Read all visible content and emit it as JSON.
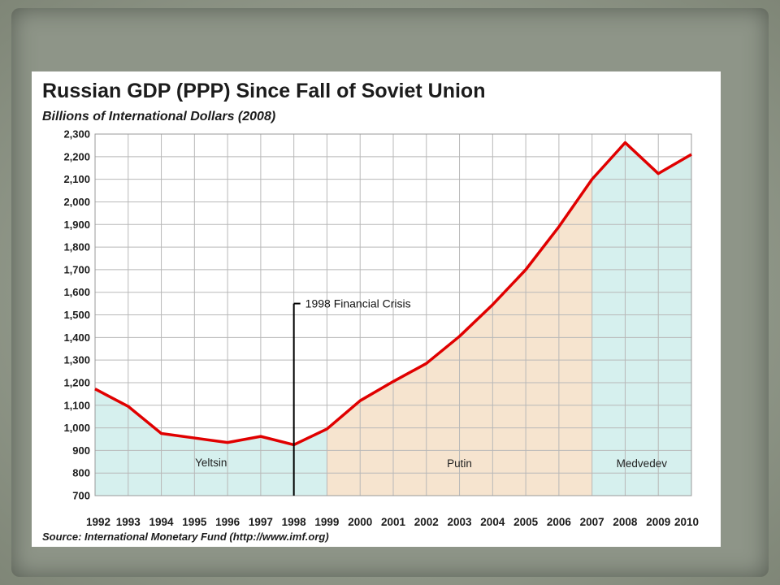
{
  "chart_data": {
    "type": "area",
    "title": "Russian GDP (PPP) Since Fall of Soviet Union",
    "subtitle": "Billions of International Dollars (2008)",
    "source": "Source: International Monetary Fund (http://www.imf.org)",
    "x": [
      "1992",
      "1993",
      "1994",
      "1995",
      "1996",
      "1997",
      "1998",
      "1999",
      "2000",
      "2001",
      "2002",
      "2003",
      "2004",
      "2005",
      "2006",
      "2007",
      "2008",
      "2009",
      "2010"
    ],
    "series": [
      {
        "values": [
          1172,
          1095,
          975,
          955,
          935,
          962,
          925,
          995,
          1120,
          1205,
          1285,
          1405,
          1545,
          1700,
          1890,
          2100,
          2262,
          2125,
          2210
        ],
        "color": "#e00000"
      }
    ],
    "ylim": [
      700,
      2300
    ],
    "yticks": [
      "700",
      "800",
      "900",
      "1,000",
      "1,100",
      "1,200",
      "1,300",
      "1,400",
      "1,500",
      "1,600",
      "1,700",
      "1,800",
      "1,900",
      "2,000",
      "2,100",
      "2,200",
      "2,300"
    ],
    "grid": true,
    "eras": [
      {
        "label": "Yeltsin",
        "from": "1992",
        "to": "1999",
        "color": "#d6f0ee"
      },
      {
        "label": "Putin",
        "from": "1999",
        "to": "2007",
        "color": "#f6e4cf"
      },
      {
        "label": "Medvedev",
        "from": "2007",
        "to": "2010",
        "color": "#d6f0ee"
      }
    ],
    "annotations": [
      {
        "text": "1998 Financial Crisis",
        "x": "1998"
      }
    ]
  }
}
